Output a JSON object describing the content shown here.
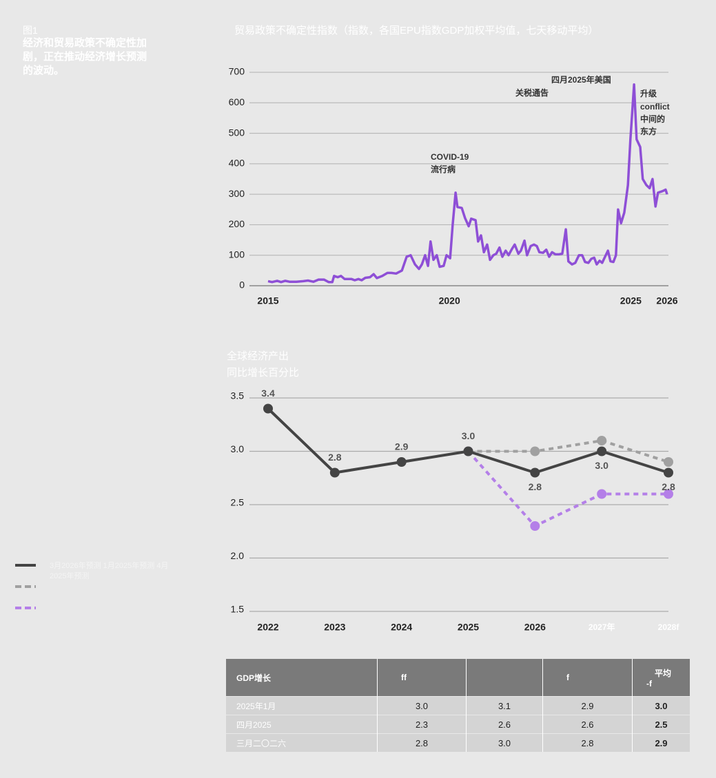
{
  "figure": {
    "label": "图1",
    "title": "经济和贸易政策不确定性加剧，正在推动经济增长预测的波动。"
  },
  "chart_data": [
    {
      "type": "line",
      "title": "贸易政策不确定性指数（指数，各国EPU指数GDP加权平均值，七天移动平均）",
      "color": "#8e4fd6",
      "x": [
        2015.0,
        2015.11,
        2015.25,
        2015.36,
        2015.47,
        2015.59,
        2015.78,
        2015.97,
        2016.1,
        2016.25,
        2016.39,
        2016.54,
        2016.67,
        2016.77,
        2016.82,
        2016.92,
        2017.01,
        2017.11,
        2017.3,
        2017.39,
        2017.49,
        2017.58,
        2017.68,
        2017.81,
        2017.91,
        2018.0,
        2018.15,
        2018.29,
        2018.4,
        2018.53,
        2018.69,
        2018.82,
        2018.93,
        2019.05,
        2019.16,
        2019.24,
        2019.33,
        2019.41,
        2019.48,
        2019.56,
        2019.65,
        2019.73,
        2019.84,
        2019.92,
        2020.02,
        2020.09,
        2020.17,
        2020.22,
        2020.34,
        2020.43,
        2020.53,
        2020.6,
        2020.72,
        2020.79,
        2020.87,
        2020.95,
        2021.04,
        2021.12,
        2021.21,
        2021.29,
        2021.38,
        2021.46,
        2021.55,
        2021.63,
        2021.72,
        2021.8,
        2021.9,
        2021.97,
        2022.07,
        2022.14,
        2022.24,
        2022.33,
        2022.41,
        2022.48,
        2022.58,
        2022.67,
        2022.75,
        2022.83,
        2022.92,
        2023.02,
        2023.11,
        2023.21,
        2023.28,
        2023.38,
        2023.47,
        2023.57,
        2023.66,
        2023.74,
        2023.83,
        2023.91,
        2023.99,
        2024.06,
        2024.14,
        2024.21,
        2024.29,
        2024.37,
        2024.44,
        2024.52,
        2024.59,
        2024.65,
        2024.73,
        2024.82,
        2024.92,
        2024.99,
        2025.09,
        2025.16,
        2025.26,
        2025.33,
        2025.43,
        2025.52,
        2025.6,
        2025.68,
        2025.75,
        2025.87,
        2025.96,
        2026.0
      ],
      "values": [
        15,
        12,
        16,
        12,
        16,
        13,
        13,
        15,
        17,
        13,
        20,
        20,
        12,
        12,
        32,
        28,
        32,
        22,
        22,
        18,
        22,
        18,
        26,
        28,
        38,
        25,
        32,
        42,
        42,
        40,
        50,
        95,
        100,
        70,
        55,
        70,
        100,
        65,
        145,
        85,
        100,
        62,
        65,
        100,
        90,
        200,
        305,
        258,
        255,
        222,
        195,
        220,
        215,
        145,
        165,
        110,
        135,
        85,
        100,
        105,
        125,
        95,
        115,
        100,
        120,
        135,
        105,
        115,
        148,
        100,
        130,
        135,
        130,
        110,
        108,
        118,
        95,
        110,
        103,
        103,
        105,
        185,
        80,
        70,
        75,
        100,
        100,
        78,
        75,
        88,
        92,
        70,
        82,
        75,
        95,
        115,
        80,
        78,
        100,
        250,
        205,
        240,
        330,
        480,
        660,
        480,
        455,
        350,
        330,
        320,
        350,
        260,
        305,
        310,
        315,
        300
      ],
      "xlim": [
        2015,
        2026
      ],
      "xticks": [
        2015,
        2020,
        2025,
        2026
      ],
      "ylim": [
        0,
        700
      ],
      "yticks": [
        0,
        100,
        200,
        300,
        400,
        500,
        600,
        700
      ],
      "grid": true,
      "annotations": [
        [
          "COVID-19",
          "流行病"
        ],
        [
          "四月2025年美国",
          "关税通告"
        ],
        [
          "升级",
          "conflict",
          "中间的",
          "东方"
        ]
      ]
    },
    {
      "type": "line",
      "title": "全球经济产出",
      "subtitle": "同比增长百分比",
      "categories": [
        "2022",
        "2023",
        "2024",
        "2025",
        "2026",
        "2027年",
        "2028f"
      ],
      "series": [
        {
          "name": "3月2026年预测",
          "color": "#444444",
          "style": "solid",
          "values": [
            3.4,
            2.8,
            2.9,
            3.0,
            2.8,
            3.0,
            2.8
          ],
          "value_labels": [
            "3.4",
            "2.8",
            "2.9",
            "3.0",
            "2.8",
            "3.0",
            "2.8"
          ]
        },
        {
          "name": "1月2025年预测",
          "color": "#a0a0a0",
          "style": "dashed",
          "values": [
            null,
            null,
            null,
            3.0,
            3.0,
            3.1,
            2.9
          ]
        },
        {
          "name": "4月2025年预测",
          "color": "#b47fe8",
          "style": "dashed",
          "values": [
            null,
            null,
            null,
            3.0,
            2.3,
            2.6,
            2.6
          ]
        }
      ],
      "ylim": [
        1.5,
        3.5
      ],
      "yticks": [
        1.5,
        {
          "value": 2,
          "label": "2.0"
        },
        2.5,
        {
          "value": 3,
          "label": "3.0"
        },
        3.5
      ],
      "grid": true
    }
  ],
  "table": {
    "header": [
      "GDP增长",
      "ff",
      "f"
    ],
    "avg_header": [
      "平均",
      "-f"
    ],
    "rows": [
      [
        "2025年1月",
        "3.0",
        "3.1",
        "2.9",
        "3.0"
      ],
      [
        "四月2025",
        "2.3",
        "2.6",
        "2.6",
        "2.5"
      ],
      [
        "三月二〇二六",
        "2.8",
        "3.0",
        "2.8",
        "2.9"
      ]
    ]
  }
}
